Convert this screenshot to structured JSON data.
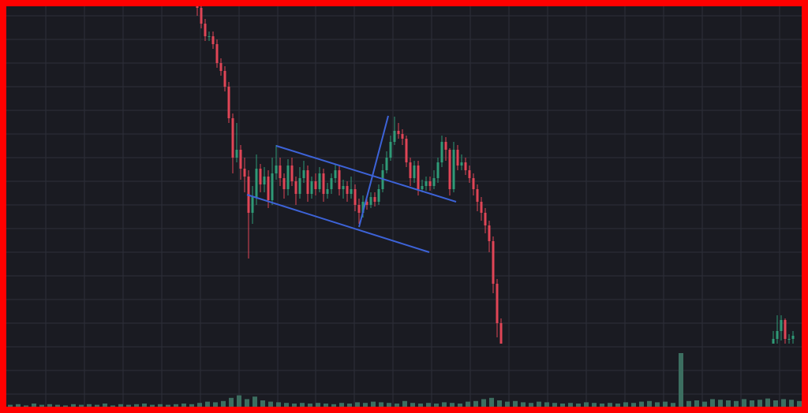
{
  "chart_data": {
    "type": "candlestick",
    "up_color": "#2f9a77",
    "down_color": "#e04556",
    "grid": true,
    "grid_color": "#2d2f39",
    "xlim": [
      8,
      1016
    ],
    "ylim": [
      0,
      127
    ],
    "xticks": [
      58,
      107,
      156,
      205,
      254,
      303,
      352,
      400,
      449,
      498,
      547,
      596,
      645,
      694,
      743,
      792,
      841,
      890,
      939,
      988
    ],
    "yticks": [
      4,
      11.5,
      19,
      26.5,
      34,
      41.5,
      49,
      56.5,
      64,
      71.5,
      79,
      86.5,
      94,
      101.5,
      109,
      116.5,
      124
    ],
    "x": [
      250,
      255,
      260,
      265,
      270,
      275,
      280,
      285,
      290,
      295,
      300,
      305,
      310,
      315,
      320,
      325,
      330,
      335,
      340,
      345,
      350,
      355,
      360,
      365,
      370,
      375,
      380,
      385,
      390,
      395,
      400,
      405,
      410,
      415,
      420,
      425,
      430,
      435,
      440,
      445,
      450,
      455,
      460,
      465,
      470,
      475,
      480,
      485,
      490,
      495,
      500,
      505,
      510,
      515,
      520,
      525,
      530,
      535,
      540,
      545,
      550,
      555,
      560,
      565,
      570,
      575,
      580,
      585,
      590,
      595,
      600,
      605,
      610,
      615,
      620,
      625,
      630,
      635,
      980,
      985,
      990,
      995,
      1000,
      1005
    ],
    "open": [
      127,
      126.5,
      121.5,
      117.5,
      117.5,
      115,
      109,
      106.5,
      101.5,
      91.5,
      79,
      81.5,
      75.5,
      73,
      61.5,
      66.5,
      75.5,
      70.5,
      73,
      65.5,
      74,
      76.5,
      72.5,
      69,
      76.5,
      71.5,
      67.5,
      72.5,
      75,
      67.5,
      71.5,
      69,
      74,
      67.5,
      69,
      72.5,
      75,
      69,
      70,
      67.5,
      69,
      64,
      61.5,
      65,
      64,
      66.5,
      65,
      69,
      75,
      79,
      84,
      87.5,
      86.5,
      85,
      77.5,
      72.5,
      76.5,
      69,
      70,
      71.5,
      70,
      72.5,
      77.5,
      84,
      81.5,
      69,
      81.5,
      76.5,
      77.5,
      75,
      72.5,
      69,
      65,
      61.5,
      57.5,
      52.5,
      39,
      26.5,
      20,
      21.5,
      24,
      27.5,
      21.5,
      21.5
    ],
    "high": [
      127,
      127,
      123,
      119,
      119,
      116.5,
      110.5,
      108,
      103,
      93,
      90,
      83,
      79,
      75,
      70,
      80,
      77,
      76,
      75,
      79,
      83,
      79,
      74,
      78.5,
      79,
      73,
      76,
      78,
      76.5,
      73,
      74,
      76,
      75.5,
      71,
      74,
      77,
      76.5,
      72,
      71.5,
      73,
      70.5,
      66,
      67,
      66.5,
      68,
      68,
      70.5,
      77,
      81,
      86,
      92,
      90,
      88,
      86,
      79,
      78,
      78,
      72,
      73,
      73,
      75,
      79,
      86,
      85.5,
      82,
      84,
      83,
      80,
      79,
      76.5,
      74,
      70.5,
      66.5,
      63,
      59,
      54,
      40.5,
      28,
      24,
      29,
      29,
      28,
      23,
      24
    ],
    "low": [
      124,
      120,
      116,
      116,
      113.5,
      107.5,
      105,
      100,
      90,
      74,
      77.5,
      72,
      68,
      47,
      58,
      64,
      68,
      68,
      63,
      64,
      72,
      70,
      66,
      67,
      70,
      64,
      66,
      71,
      65,
      66,
      67,
      68,
      65,
      66,
      67.5,
      71,
      67,
      66,
      65,
      66,
      62,
      58,
      60,
      62.5,
      63,
      63.5,
      64,
      68,
      74,
      78,
      83,
      85,
      83,
      76,
      70,
      71,
      67,
      68,
      68.5,
      68.5,
      69,
      71,
      76,
      78,
      67,
      68,
      75,
      75,
      73.5,
      71,
      67,
      62,
      59,
      55,
      49,
      36,
      22,
      20,
      20,
      20,
      21,
      20,
      20,
      20
    ],
    "close": [
      126.5,
      121.5,
      117.5,
      117.5,
      115,
      109,
      106.5,
      101.5,
      91.5,
      79,
      81.5,
      75.5,
      73,
      61.5,
      66.5,
      75.5,
      70.5,
      73,
      65.5,
      74,
      76.5,
      72.5,
      69,
      76.5,
      71.5,
      67.5,
      72.5,
      75,
      67.5,
      71.5,
      69,
      74,
      67.5,
      69,
      72.5,
      75,
      69,
      70,
      67.5,
      69,
      64,
      61.5,
      65,
      64,
      66.5,
      65,
      69,
      75,
      79,
      84,
      87.5,
      86.5,
      85,
      77.5,
      72.5,
      76.5,
      69,
      70,
      71.5,
      70,
      72.5,
      77.5,
      84,
      81.5,
      69,
      81.5,
      76.5,
      77.5,
      75,
      72.5,
      69,
      65,
      61.5,
      57.5,
      52.5,
      39,
      26.5,
      20,
      21.5,
      24,
      27.5,
      21.5,
      21.5,
      22.5
    ],
    "y2lim": [
      0,
      100
    ],
    "volume": {
      "color": "#3c6e60",
      "x": [
        13,
        23,
        33,
        43,
        53,
        63,
        73,
        83,
        93,
        103,
        113,
        123,
        133,
        143,
        153,
        163,
        173,
        183,
        193,
        203,
        213,
        223,
        233,
        243,
        253,
        263,
        273,
        283,
        293,
        303,
        313,
        323,
        333,
        343,
        353,
        363,
        373,
        383,
        393,
        403,
        413,
        423,
        433,
        443,
        453,
        463,
        473,
        483,
        493,
        503,
        513,
        523,
        533,
        543,
        553,
        563,
        573,
        583,
        593,
        603,
        613,
        623,
        633,
        643,
        653,
        663,
        673,
        683,
        693,
        703,
        713,
        723,
        733,
        743,
        753,
        763,
        773,
        783,
        793,
        803,
        813,
        823,
        833,
        843,
        853,
        863,
        873,
        883,
        893,
        903,
        913,
        923,
        933,
        943,
        953,
        963,
        973,
        983,
        993,
        1003,
        1013
      ],
      "values": [
        3,
        4,
        2,
        5,
        3,
        4,
        3,
        2,
        4,
        3,
        4,
        3,
        5,
        2,
        4,
        3,
        4,
        5,
        3,
        4,
        3,
        4,
        5,
        4,
        6,
        8,
        7,
        9,
        14,
        18,
        12,
        16,
        10,
        8,
        7,
        6,
        5,
        6,
        5,
        6,
        5,
        4,
        6,
        5,
        7,
        6,
        8,
        7,
        6,
        5,
        9,
        6,
        5,
        6,
        5,
        7,
        6,
        5,
        8,
        9,
        12,
        14,
        10,
        8,
        9,
        7,
        6,
        8,
        7,
        6,
        5,
        6,
        5,
        7,
        6,
        5,
        6,
        5,
        7,
        6,
        8,
        9,
        7,
        8,
        6,
        85,
        9,
        10,
        8,
        12,
        11,
        10,
        9,
        12,
        10,
        11,
        13,
        10,
        12,
        11,
        9
      ]
    }
  }
}
